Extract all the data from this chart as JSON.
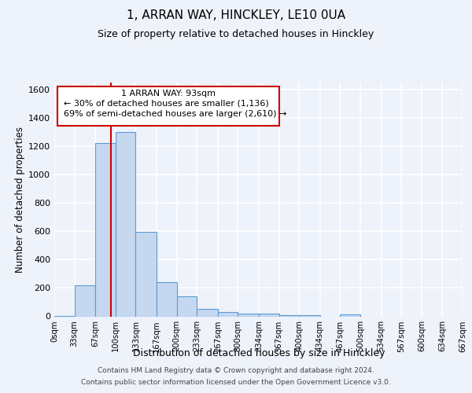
{
  "title": "1, ARRAN WAY, HINCKLEY, LE10 0UA",
  "subtitle": "Size of property relative to detached houses in Hinckley",
  "xlabel": "Distribution of detached houses by size in Hinckley",
  "ylabel": "Number of detached properties",
  "bin_labels": [
    "0sqm",
    "33sqm",
    "67sqm",
    "100sqm",
    "133sqm",
    "167sqm",
    "200sqm",
    "233sqm",
    "267sqm",
    "300sqm",
    "334sqm",
    "367sqm",
    "400sqm",
    "434sqm",
    "467sqm",
    "500sqm",
    "534sqm",
    "567sqm",
    "600sqm",
    "634sqm",
    "667sqm"
  ],
  "bin_edges": [
    0,
    33,
    67,
    100,
    133,
    167,
    200,
    233,
    267,
    300,
    334,
    367,
    400,
    434,
    467,
    500,
    534,
    567,
    600,
    634,
    667
  ],
  "bar_heights": [
    5,
    220,
    1225,
    1300,
    595,
    240,
    140,
    50,
    28,
    22,
    22,
    8,
    8,
    0,
    12,
    0,
    0,
    0,
    0,
    0
  ],
  "bar_color": "#c5d8f0",
  "bar_edge_color": "#5b9bd5",
  "red_line_x": 93,
  "annotation_title": "1 ARRAN WAY: 93sqm",
  "annotation_line1": "← 30% of detached houses are smaller (1,136)",
  "annotation_line2": "69% of semi-detached houses are larger (2,610) →",
  "annotation_box_color": "#ffffff",
  "annotation_border_color": "#cc0000",
  "red_line_color": "#cc0000",
  "background_color": "#eef2fa",
  "grid_color": "#ffffff",
  "ylim": [
    0,
    1650
  ],
  "footer_line1": "Contains HM Land Registry data © Crown copyright and database right 2024.",
  "footer_line2": "Contains public sector information licensed under the Open Government Licence v3.0."
}
